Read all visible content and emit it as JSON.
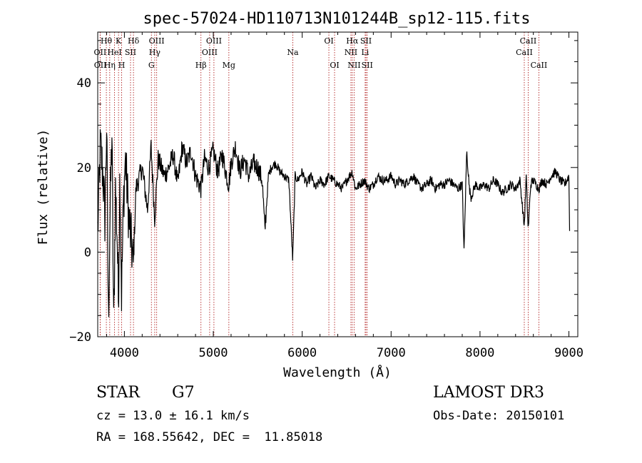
{
  "chart_data": {
    "type": "line",
    "title": "spec-57024-HD110713N101244B_sp12-115.fits",
    "xlabel": "Wavelength (Å)",
    "ylabel": "Flux (relative)",
    "xlim": [
      3700,
      9100
    ],
    "ylim": [
      -20,
      52
    ],
    "xticks": [
      4000,
      5000,
      6000,
      7000,
      8000,
      9000
    ],
    "yticks": [
      -20,
      0,
      20,
      40
    ],
    "grid": false,
    "line_color": "#000000",
    "marker_color": "#b22222",
    "spectrum": {
      "wavelength": [
        3700,
        3730,
        3760,
        3780,
        3800,
        3820,
        3840,
        3860,
        3880,
        3900,
        3920,
        3933,
        3950,
        3968,
        3990,
        4010,
        4050,
        4101,
        4130,
        4200,
        4260,
        4300,
        4340,
        4380,
        4450,
        4500,
        4550,
        4600,
        4650,
        4700,
        4750,
        4800,
        4861,
        4900,
        4950,
        5000,
        5050,
        5100,
        5150,
        5175,
        5200,
        5250,
        5300,
        5350,
        5400,
        5450,
        5500,
        5550,
        5580,
        5620,
        5650,
        5700,
        5750,
        5800,
        5850,
        5893,
        5920,
        5950,
        6000,
        6050,
        6100,
        6150,
        6200,
        6250,
        6300,
        6350,
        6400,
        6450,
        6500,
        6563,
        6600,
        6650,
        6700,
        6750,
        6800,
        6850,
        6900,
        6950,
        7000,
        7050,
        7100,
        7150,
        7200,
        7250,
        7300,
        7350,
        7400,
        7450,
        7500,
        7550,
        7600,
        7650,
        7700,
        7750,
        7800,
        7820,
        7850,
        7880,
        7900,
        7950,
        8000,
        8050,
        8100,
        8150,
        8200,
        8250,
        8300,
        8350,
        8400,
        8450,
        8498,
        8520,
        8542,
        8570,
        8600,
        8662,
        8700,
        8750,
        8800,
        8850,
        8900,
        8950,
        9000,
        9010
      ],
      "flux": [
        5,
        25,
        18,
        8,
        30,
        -16,
        10,
        28,
        -18,
        15,
        3,
        -12,
        20,
        -10,
        12,
        22,
        8,
        -3,
        15,
        20,
        10,
        25,
        8,
        22,
        18,
        20,
        23,
        16,
        25,
        21,
        24,
        18,
        15,
        22,
        20,
        24,
        19,
        23,
        18,
        16,
        21,
        25,
        19,
        22,
        18,
        21,
        20,
        17,
        5,
        18,
        20,
        21,
        19,
        18,
        17,
        -2,
        18,
        17,
        19,
        16,
        18,
        15,
        17,
        16,
        18,
        17,
        16,
        15,
        17,
        19,
        15,
        16,
        17,
        15,
        16,
        18,
        17,
        17,
        18,
        16,
        17,
        16,
        17,
        18,
        16,
        15,
        16,
        17,
        15,
        16,
        16,
        17,
        16,
        15,
        16,
        0,
        24,
        15,
        13,
        16,
        15,
        16,
        15,
        17,
        16,
        14,
        15,
        16,
        15,
        17,
        6,
        18,
        5,
        16,
        17,
        15,
        17,
        16,
        18,
        19,
        17,
        16,
        18,
        2
      ]
    },
    "lines": [
      {
        "label": "OII",
        "wavelength": 3727,
        "row": 2
      },
      {
        "label": "OII",
        "wavelength": 3729,
        "row": 3
      },
      {
        "label": "Hθ",
        "wavelength": 3797,
        "row": 1
      },
      {
        "label": "Hη",
        "wavelength": 3835,
        "row": 3
      },
      {
        "label": "HeI",
        "wavelength": 3889,
        "row": 2
      },
      {
        "label": "K",
        "wavelength": 3934,
        "row": 1
      },
      {
        "label": "H",
        "wavelength": 3969,
        "row": 3
      },
      {
        "label": "SII",
        "wavelength": 4069,
        "row": 2
      },
      {
        "label": "Hδ",
        "wavelength": 4102,
        "row": 1
      },
      {
        "label": "G",
        "wavelength": 4304,
        "row": 3
      },
      {
        "label": "Hγ",
        "wavelength": 4341,
        "row": 2
      },
      {
        "label": "OIII",
        "wavelength": 4363,
        "row": 1
      },
      {
        "label": "Hβ",
        "wavelength": 4861,
        "row": 3
      },
      {
        "label": "OIII",
        "wavelength": 4959,
        "row": 2
      },
      {
        "label": "OIII",
        "wavelength": 5007,
        "row": 1
      },
      {
        "label": "Mg",
        "wavelength": 5175,
        "row": 3
      },
      {
        "label": "Na",
        "wavelength": 5894,
        "row": 2
      },
      {
        "label": "OI",
        "wavelength": 6300,
        "row": 1
      },
      {
        "label": "OI",
        "wavelength": 6364,
        "row": 3
      },
      {
        "label": "NII",
        "wavelength": 6548,
        "row": 2
      },
      {
        "label": "Hα",
        "wavelength": 6563,
        "row": 1
      },
      {
        "label": "NII",
        "wavelength": 6584,
        "row": 3
      },
      {
        "label": "Li",
        "wavelength": 6708,
        "row": 2
      },
      {
        "label": "SII",
        "wavelength": 6717,
        "row": 1
      },
      {
        "label": "SII",
        "wavelength": 6731,
        "row": 3
      },
      {
        "label": "CaII",
        "wavelength": 8498,
        "row": 2
      },
      {
        "label": "CaII",
        "wavelength": 8542,
        "row": 1
      },
      {
        "label": "CaII",
        "wavelength": 8662,
        "row": 3
      }
    ]
  },
  "info": {
    "object_class": "STAR",
    "subclass": "G7",
    "survey": "LAMOST DR3",
    "redshift": "cz = 13.0 ± 16.1 km/s",
    "obs_date": "Obs-Date: 20150101",
    "coords": "RA = 168.55642, DEC =  11.85018"
  }
}
